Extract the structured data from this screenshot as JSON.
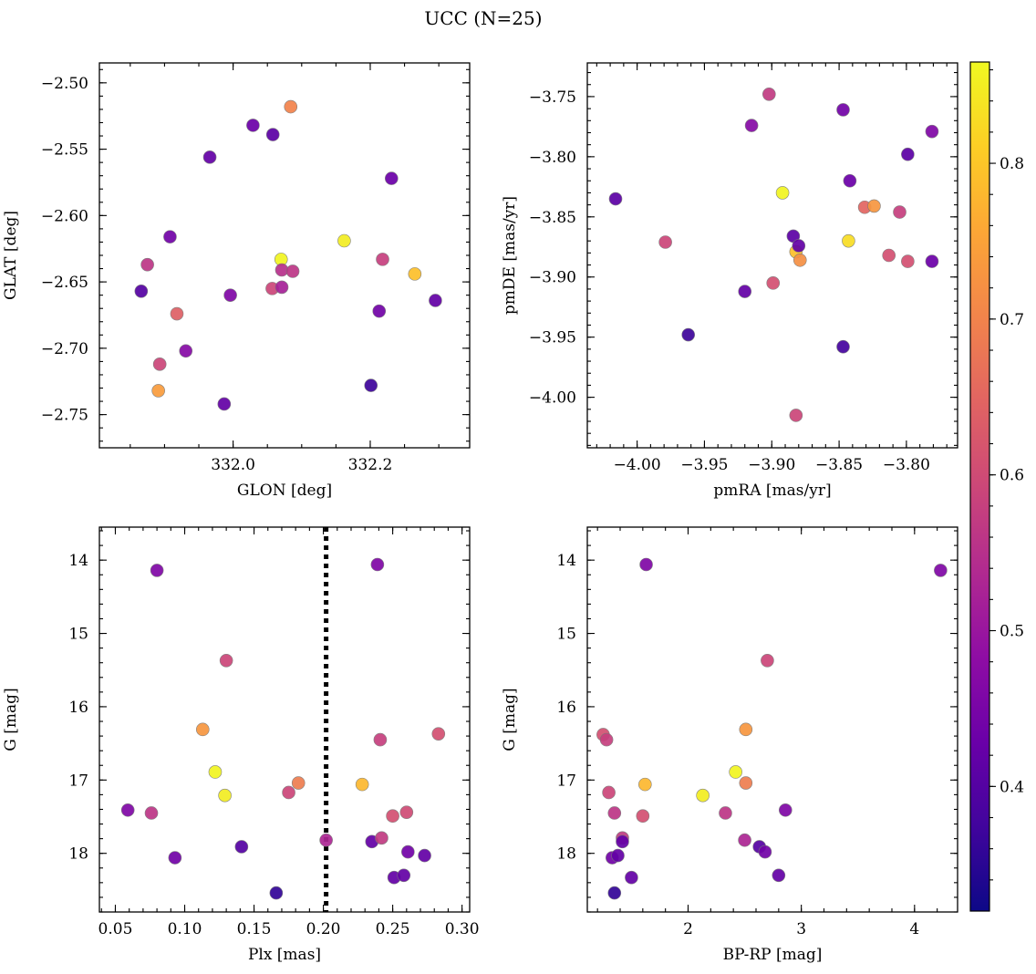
{
  "figure_title": "UCC (N=25)",
  "colorbar": {
    "ticks": [
      0.4,
      0.5,
      0.6,
      0.7,
      0.8
    ],
    "tick_labels": [
      "0.4",
      "0.5",
      "0.6",
      "0.7",
      "0.8"
    ],
    "range": [
      0.32,
      0.865
    ],
    "colormap": "plasma"
  },
  "chart_data": [
    {
      "type": "scatter",
      "id": "glon-glat",
      "xlabel": "GLON [deg]",
      "ylabel": "GLAT [deg]",
      "xlim": [
        331.805,
        332.345
      ],
      "ylim": [
        -2.775,
        -2.485
      ],
      "xticks": [
        332.0,
        332.2
      ],
      "xtick_labels": [
        "332.0",
        "332.2"
      ],
      "yticks": [
        -2.5,
        -2.55,
        -2.6,
        -2.65,
        -2.7,
        -2.75
      ],
      "ytick_labels": [
        "−2.50",
        "−2.55",
        "−2.60",
        "−2.65",
        "−2.70",
        "−2.75"
      ],
      "points": [
        {
          "x": 331.866,
          "y": -2.657,
          "c": 0.4
        },
        {
          "x": 331.875,
          "y": -2.637,
          "c": 0.56
        },
        {
          "x": 331.893,
          "y": -2.712,
          "c": 0.59
        },
        {
          "x": 331.891,
          "y": -2.732,
          "c": 0.74
        },
        {
          "x": 331.908,
          "y": -2.616,
          "c": 0.44
        },
        {
          "x": 331.918,
          "y": -2.674,
          "c": 0.64
        },
        {
          "x": 331.931,
          "y": -2.702,
          "c": 0.47
        },
        {
          "x": 331.966,
          "y": -2.556,
          "c": 0.42
        },
        {
          "x": 331.987,
          "y": -2.742,
          "c": 0.42
        },
        {
          "x": 331.996,
          "y": -2.66,
          "c": 0.46
        },
        {
          "x": 332.029,
          "y": -2.532,
          "c": 0.43
        },
        {
          "x": 332.058,
          "y": -2.539,
          "c": 0.41
        },
        {
          "x": 332.057,
          "y": -2.655,
          "c": 0.59
        },
        {
          "x": 332.07,
          "y": -2.633,
          "c": 0.86
        },
        {
          "x": 332.071,
          "y": -2.641,
          "c": 0.55
        },
        {
          "x": 332.071,
          "y": -2.654,
          "c": 0.52
        },
        {
          "x": 332.084,
          "y": -2.518,
          "c": 0.7
        },
        {
          "x": 332.087,
          "y": -2.642,
          "c": 0.56
        },
        {
          "x": 332.162,
          "y": -2.619,
          "c": 0.85
        },
        {
          "x": 332.201,
          "y": -2.728,
          "c": 0.37
        },
        {
          "x": 332.213,
          "y": -2.672,
          "c": 0.44
        },
        {
          "x": 332.218,
          "y": -2.633,
          "c": 0.58
        },
        {
          "x": 332.231,
          "y": -2.572,
          "c": 0.43
        },
        {
          "x": 332.265,
          "y": -2.644,
          "c": 0.79
        },
        {
          "x": 332.295,
          "y": -2.664,
          "c": 0.42
        }
      ]
    },
    {
      "type": "scatter",
      "id": "pmra-pmde",
      "xlabel": "pmRA [mas/yr]",
      "ylabel": "pmDE [mas/yr]",
      "xlim": [
        -4.037,
        -3.762
      ],
      "ylim": [
        -4.042,
        -3.722
      ],
      "xticks": [
        -4.0,
        -3.95,
        -3.9,
        -3.85,
        -3.8
      ],
      "xtick_labels": [
        "−4.00",
        "−3.95",
        "−3.90",
        "−3.85",
        "−3.80"
      ],
      "yticks": [
        -3.75,
        -3.8,
        -3.85,
        -3.9,
        -3.95,
        -4.0
      ],
      "ytick_labels": [
        "−3.75",
        "−3.80",
        "−3.85",
        "−3.90",
        "−3.95",
        "−4.00"
      ],
      "points": [
        {
          "x": -4.016,
          "y": -3.835,
          "c": 0.41
        },
        {
          "x": -3.979,
          "y": -3.871,
          "c": 0.59
        },
        {
          "x": -3.962,
          "y": -3.948,
          "c": 0.37
        },
        {
          "x": -3.92,
          "y": -3.912,
          "c": 0.42
        },
        {
          "x": -3.915,
          "y": -3.774,
          "c": 0.47
        },
        {
          "x": -3.902,
          "y": -3.748,
          "c": 0.57
        },
        {
          "x": -3.899,
          "y": -3.905,
          "c": 0.61
        },
        {
          "x": -3.892,
          "y": -3.83,
          "c": 0.86
        },
        {
          "x": -3.884,
          "y": -3.866,
          "c": 0.41
        },
        {
          "x": -3.882,
          "y": -3.879,
          "c": 0.79
        },
        {
          "x": -3.88,
          "y": -3.874,
          "c": 0.42
        },
        {
          "x": -3.882,
          "y": -4.015,
          "c": 0.59
        },
        {
          "x": -3.879,
          "y": -3.886,
          "c": 0.72
        },
        {
          "x": -3.847,
          "y": -3.761,
          "c": 0.44
        },
        {
          "x": -3.847,
          "y": -3.958,
          "c": 0.38
        },
        {
          "x": -3.843,
          "y": -3.87,
          "c": 0.83
        },
        {
          "x": -3.842,
          "y": -3.82,
          "c": 0.43
        },
        {
          "x": -3.831,
          "y": -3.842,
          "c": 0.65
        },
        {
          "x": -3.824,
          "y": -3.841,
          "c": 0.73
        },
        {
          "x": -3.813,
          "y": -3.882,
          "c": 0.61
        },
        {
          "x": -3.805,
          "y": -3.846,
          "c": 0.58
        },
        {
          "x": -3.799,
          "y": -3.887,
          "c": 0.61
        },
        {
          "x": -3.799,
          "y": -3.798,
          "c": 0.41
        },
        {
          "x": -3.781,
          "y": -3.779,
          "c": 0.46
        },
        {
          "x": -3.781,
          "y": -3.887,
          "c": 0.43
        }
      ]
    },
    {
      "type": "scatter",
      "id": "plx-g",
      "xlabel": "Plx [mas]",
      "ylabel": "G [mag]",
      "xlim": [
        0.0385,
        0.3055
      ],
      "ylim": [
        18.8,
        13.55
      ],
      "y_inverted": true,
      "xticks": [
        0.05,
        0.1,
        0.15,
        0.2,
        0.25,
        0.3
      ],
      "xtick_labels": [
        "0.05",
        "0.10",
        "0.15",
        "0.20",
        "0.25",
        "0.30"
      ],
      "yticks": [
        14,
        15,
        16,
        17,
        18
      ],
      "ytick_labels": [
        "14",
        "15",
        "16",
        "17",
        "18"
      ],
      "vline": {
        "x": 0.202,
        "style": "dotted"
      },
      "points": [
        {
          "x": 0.059,
          "y": 17.41,
          "c": 0.46
        },
        {
          "x": 0.076,
          "y": 17.45,
          "c": 0.56
        },
        {
          "x": 0.08,
          "y": 14.14,
          "c": 0.46
        },
        {
          "x": 0.093,
          "y": 18.06,
          "c": 0.44
        },
        {
          "x": 0.113,
          "y": 16.31,
          "c": 0.73
        },
        {
          "x": 0.122,
          "y": 16.89,
          "c": 0.86
        },
        {
          "x": 0.129,
          "y": 17.21,
          "c": 0.85
        },
        {
          "x": 0.13,
          "y": 15.37,
          "c": 0.59
        },
        {
          "x": 0.141,
          "y": 17.91,
          "c": 0.4
        },
        {
          "x": 0.166,
          "y": 18.54,
          "c": 0.36
        },
        {
          "x": 0.175,
          "y": 17.17,
          "c": 0.59
        },
        {
          "x": 0.182,
          "y": 17.04,
          "c": 0.69
        },
        {
          "x": 0.202,
          "y": 17.82,
          "c": 0.53
        },
        {
          "x": 0.228,
          "y": 17.06,
          "c": 0.78
        },
        {
          "x": 0.235,
          "y": 17.84,
          "c": 0.42
        },
        {
          "x": 0.239,
          "y": 14.06,
          "c": 0.46
        },
        {
          "x": 0.241,
          "y": 16.45,
          "c": 0.58
        },
        {
          "x": 0.242,
          "y": 17.79,
          "c": 0.57
        },
        {
          "x": 0.25,
          "y": 17.49,
          "c": 0.61
        },
        {
          "x": 0.251,
          "y": 18.33,
          "c": 0.42
        },
        {
          "x": 0.258,
          "y": 18.3,
          "c": 0.42
        },
        {
          "x": 0.26,
          "y": 17.44,
          "c": 0.6
        },
        {
          "x": 0.261,
          "y": 17.98,
          "c": 0.44
        },
        {
          "x": 0.273,
          "y": 18.03,
          "c": 0.42
        },
        {
          "x": 0.283,
          "y": 16.37,
          "c": 0.61
        }
      ]
    },
    {
      "type": "scatter",
      "id": "bprp-g",
      "xlabel": "BP-RP [mag]",
      "ylabel": "G [mag]",
      "xlim": [
        1.11,
        4.38
      ],
      "ylim": [
        18.8,
        13.55
      ],
      "y_inverted": true,
      "xticks": [
        2,
        3,
        4
      ],
      "xtick_labels": [
        "2",
        "3",
        "4"
      ],
      "yticks": [
        14,
        15,
        16,
        17,
        18
      ],
      "ytick_labels": [
        "14",
        "15",
        "16",
        "17",
        "18"
      ],
      "points": [
        {
          "x": 1.25,
          "y": 16.38,
          "c": 0.61
        },
        {
          "x": 1.28,
          "y": 16.45,
          "c": 0.58
        },
        {
          "x": 1.3,
          "y": 17.17,
          "c": 0.59
        },
        {
          "x": 1.33,
          "y": 18.06,
          "c": 0.44
        },
        {
          "x": 1.35,
          "y": 17.45,
          "c": 0.56
        },
        {
          "x": 1.35,
          "y": 18.54,
          "c": 0.36
        },
        {
          "x": 1.38,
          "y": 18.03,
          "c": 0.42
        },
        {
          "x": 1.42,
          "y": 17.79,
          "c": 0.57
        },
        {
          "x": 1.42,
          "y": 17.84,
          "c": 0.42
        },
        {
          "x": 1.5,
          "y": 18.33,
          "c": 0.42
        },
        {
          "x": 1.6,
          "y": 17.49,
          "c": 0.61
        },
        {
          "x": 1.62,
          "y": 17.06,
          "c": 0.78
        },
        {
          "x": 1.63,
          "y": 14.06,
          "c": 0.46
        },
        {
          "x": 2.13,
          "y": 17.21,
          "c": 0.85
        },
        {
          "x": 2.33,
          "y": 17.45,
          "c": 0.56
        },
        {
          "x": 2.42,
          "y": 16.89,
          "c": 0.86
        },
        {
          "x": 2.5,
          "y": 17.82,
          "c": 0.53
        },
        {
          "x": 2.51,
          "y": 16.31,
          "c": 0.73
        },
        {
          "x": 2.51,
          "y": 17.04,
          "c": 0.69
        },
        {
          "x": 2.63,
          "y": 17.91,
          "c": 0.4
        },
        {
          "x": 2.68,
          "y": 17.98,
          "c": 0.44
        },
        {
          "x": 2.7,
          "y": 15.37,
          "c": 0.59
        },
        {
          "x": 2.8,
          "y": 18.3,
          "c": 0.42
        },
        {
          "x": 2.86,
          "y": 17.41,
          "c": 0.46
        },
        {
          "x": 4.23,
          "y": 14.14,
          "c": 0.46
        }
      ]
    }
  ]
}
